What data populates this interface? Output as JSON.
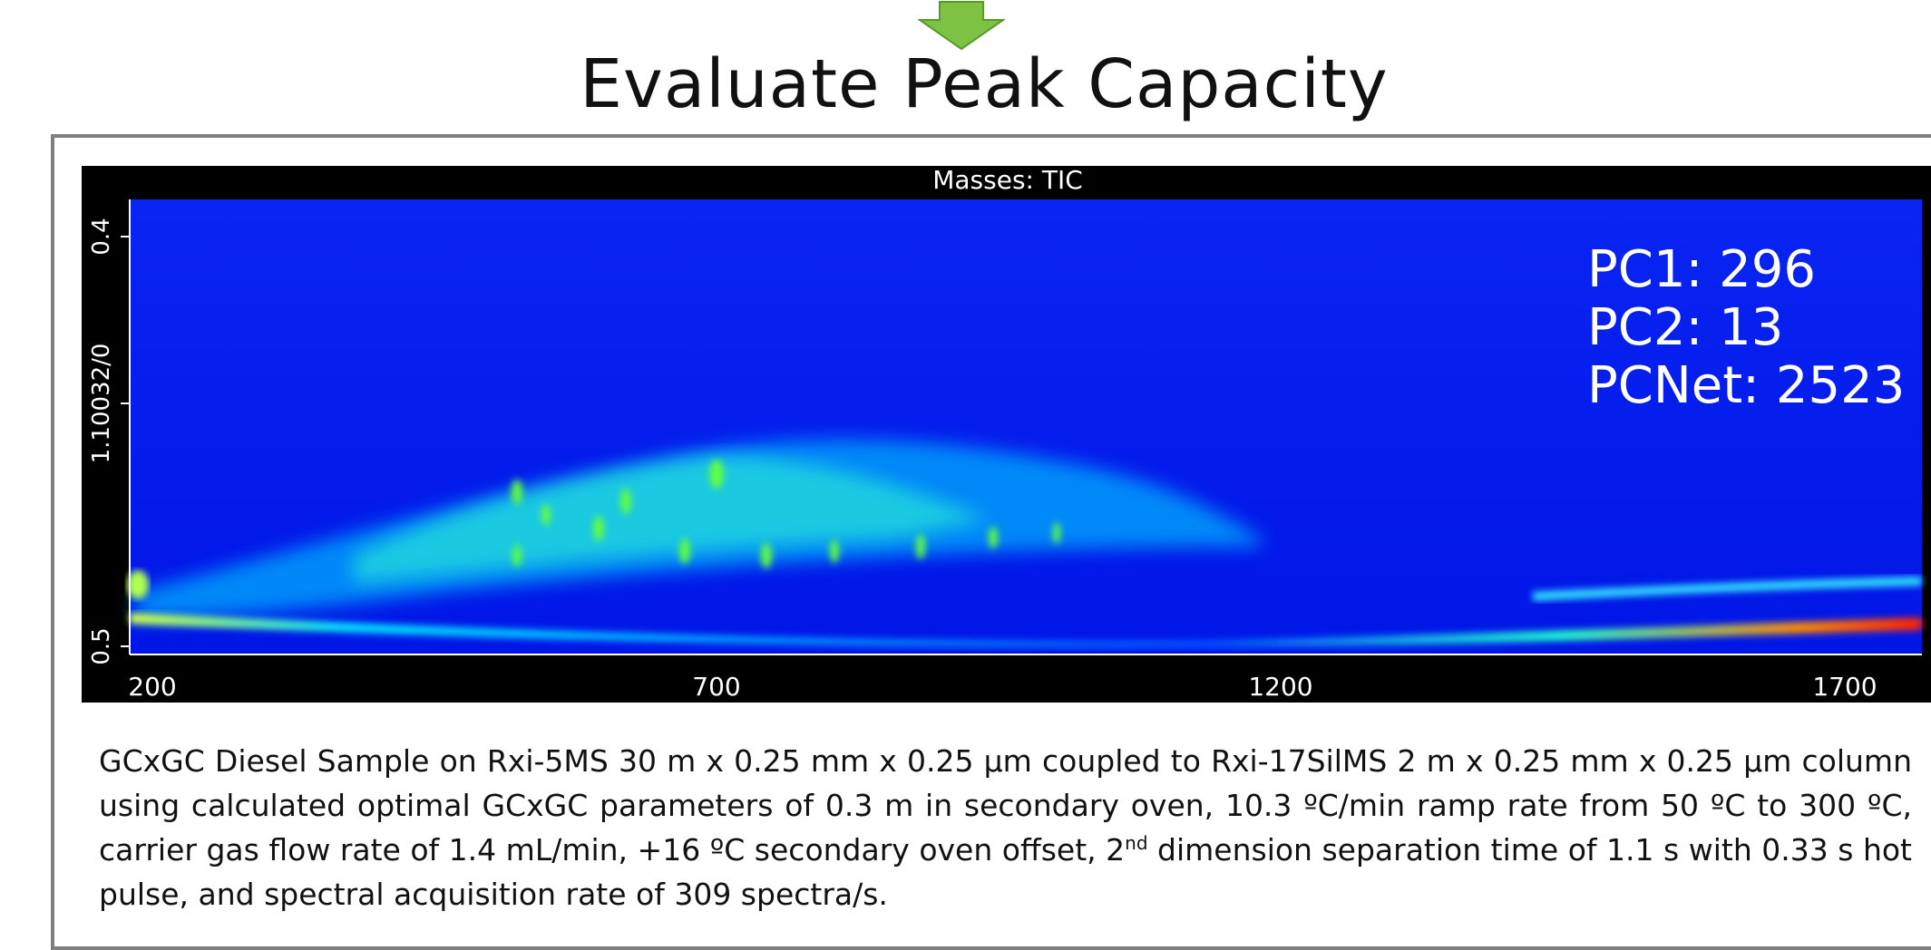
{
  "header": {
    "title": "Evaluate Peak Capacity"
  },
  "figure": {
    "panel_title": "Masses: TIC",
    "y_tick_labels": [
      "0.4",
      "1.10032/0",
      "0.5"
    ],
    "x_tick_labels": [
      "200",
      "700",
      "1200",
      "1700"
    ],
    "annotations": [
      "PC1: 296",
      "PC2: 13",
      "PCNet: 2523"
    ]
  },
  "caption": {
    "before": "GCxGC Diesel Sample on Rxi-5MS 30 m x 0.25 mm x 0.25 µm coupled to Rxi-17SilMS 2 m x 0.25 mm x 0.25 µm column using calculated optimal GCxGC parameters of 0.3 m in secondary oven, 10.3 ºC/min ramp rate from 50 ºC to 300 ºC, carrier gas flow rate of 1.4 mL/min, +16 ºC secondary oven offset, 2",
    "superscript": "nd",
    "after": " dimension separation time of 1.1 s with 0.33 s hot pulse, and spectral acquisition rate of 309 spectra/s."
  }
}
